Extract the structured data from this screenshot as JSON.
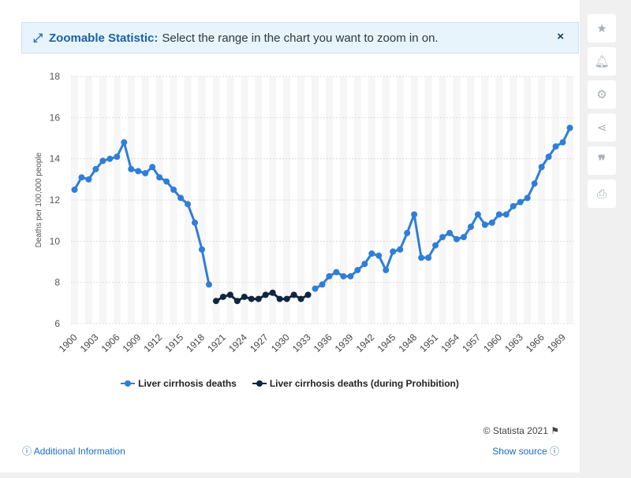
{
  "banner": {
    "title": "Zoomable Statistic:",
    "text": "Select the range in the chart you want to zoom in on.",
    "close": "×"
  },
  "sidebar": {
    "icons": [
      "star-icon",
      "bell-icon",
      "gear-icon",
      "share-icon",
      "quote-icon",
      "print-icon"
    ]
  },
  "footer": {
    "credit": "© Statista 2021",
    "additional_info": "Additional Information",
    "show_source": "Show source"
  },
  "chart_data": {
    "type": "line",
    "title": "",
    "xlabel": "",
    "ylabel": "Deaths per 100,000 people",
    "ylim": [
      6,
      18
    ],
    "yticks": [
      6,
      8,
      10,
      12,
      14,
      16,
      18
    ],
    "xlim": [
      1900,
      1970
    ],
    "xticks": [
      "1900",
      "1903",
      "1906",
      "1909",
      "1912",
      "1915",
      "1918",
      "1921",
      "1924",
      "1927",
      "1930",
      "1933",
      "1936",
      "1939",
      "1942",
      "1945",
      "1948",
      "1951",
      "1954",
      "1957",
      "1960",
      "1963",
      "1966",
      "1969"
    ],
    "grid": true,
    "legend_position": "bottom",
    "series": [
      {
        "name": "Liver cirrhosis deaths",
        "color": "#2f7ed8",
        "x": [
          1900,
          1901,
          1902,
          1903,
          1904,
          1905,
          1906,
          1907,
          1908,
          1909,
          1910,
          1911,
          1912,
          1913,
          1914,
          1915,
          1916,
          1917,
          1918,
          1919
        ],
        "y": [
          12.5,
          13.1,
          13.0,
          13.5,
          13.9,
          14.0,
          14.1,
          14.8,
          13.5,
          13.4,
          13.3,
          13.6,
          13.1,
          12.9,
          12.5,
          12.1,
          11.8,
          10.9,
          9.6,
          7.9
        ]
      },
      {
        "name": "Liver cirrhosis deaths (during Prohibition)",
        "color": "#10253f",
        "x": [
          1920,
          1921,
          1922,
          1923,
          1924,
          1925,
          1926,
          1927,
          1928,
          1929,
          1930,
          1931,
          1932,
          1933
        ],
        "y": [
          7.1,
          7.3,
          7.4,
          7.1,
          7.3,
          7.2,
          7.2,
          7.4,
          7.5,
          7.2,
          7.2,
          7.4,
          7.2,
          7.4
        ]
      },
      {
        "name": "Liver cirrhosis deaths",
        "color": "#2f7ed8",
        "x": [
          1934,
          1935,
          1936,
          1937,
          1938,
          1939,
          1940,
          1941,
          1942,
          1943,
          1944,
          1945,
          1946,
          1947,
          1948,
          1949,
          1950,
          1951,
          1952,
          1953,
          1954,
          1955,
          1956,
          1957,
          1958,
          1959,
          1960,
          1961,
          1962,
          1963,
          1964,
          1965,
          1966,
          1967,
          1968,
          1969,
          1970
        ],
        "y": [
          7.7,
          7.9,
          8.3,
          8.5,
          8.3,
          8.3,
          8.6,
          8.9,
          9.4,
          9.3,
          8.6,
          9.5,
          9.6,
          10.4,
          11.3,
          9.2,
          9.2,
          9.8,
          10.2,
          10.4,
          10.1,
          10.2,
          10.7,
          11.3,
          10.8,
          10.9,
          11.3,
          11.3,
          11.7,
          11.9,
          12.1,
          12.8,
          13.6,
          14.1,
          14.6,
          14.8,
          15.5
        ]
      }
    ]
  }
}
